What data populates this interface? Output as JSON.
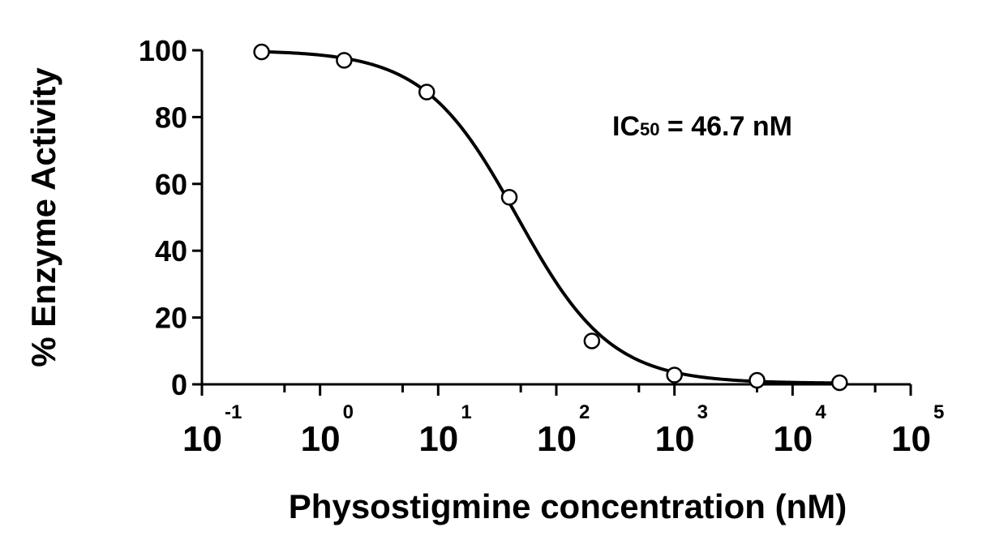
{
  "chart_data": {
    "type": "scatter",
    "xlabel": "Physostigmine concentration (nM)",
    "ylabel": "% Enzyme Activity",
    "x_scale": "log",
    "xlim": [
      0.1,
      100000
    ],
    "ylim": [
      0,
      100
    ],
    "y_ticks": [
      "0",
      "20",
      "40",
      "60",
      "80",
      "100"
    ],
    "x_ticks": [
      {
        "base": "10",
        "exp": "-1"
      },
      {
        "base": "10",
        "exp": "0"
      },
      {
        "base": "10",
        "exp": "1"
      },
      {
        "base": "10",
        "exp": "2"
      },
      {
        "base": "10",
        "exp": "3"
      },
      {
        "base": "10",
        "exp": "4"
      },
      {
        "base": "10",
        "exp": "5"
      }
    ],
    "annotation": {
      "prefix": "IC",
      "subscript": "50",
      "suffix": " = 46.7 nM"
    },
    "points": {
      "x": [
        0.32,
        1.6,
        8.0,
        40,
        200,
        1000,
        5000,
        25000
      ],
      "y": [
        99.5,
        97,
        87.5,
        56,
        13,
        2.8,
        1.2,
        0.5
      ]
    },
    "fit": {
      "model": "four-parameter logistic",
      "top": 100,
      "bottom": 0.3,
      "ic50": 46.7,
      "hill": 1.1
    },
    "grid": false,
    "legend": "none",
    "colors": {
      "line": "#000000",
      "marker_fill": "#ffffff",
      "marker_edge": "#000000"
    }
  }
}
